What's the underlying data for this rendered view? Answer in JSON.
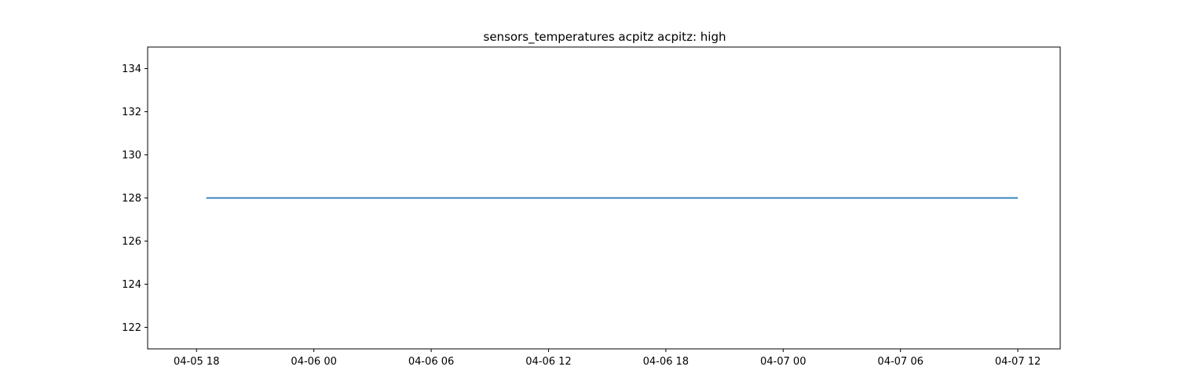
{
  "chart_data": {
    "type": "line",
    "title": "sensors_temperatures acpitz acpitz:  high",
    "xlabel": "",
    "ylabel": "",
    "x_ticks": [
      {
        "value": "2023-04-05T18:00",
        "label": "04-05 18"
      },
      {
        "value": "2023-04-06T00:00",
        "label": "04-06 00"
      },
      {
        "value": "2023-04-06T06:00",
        "label": "04-06 06"
      },
      {
        "value": "2023-04-06T12:00",
        "label": "04-06 12"
      },
      {
        "value": "2023-04-06T18:00",
        "label": "04-06 18"
      },
      {
        "value": "2023-04-07T00:00",
        "label": "04-07 00"
      },
      {
        "value": "2023-04-07T06:00",
        "label": "04-07 06"
      },
      {
        "value": "2023-04-07T12:00",
        "label": "04-07 12"
      }
    ],
    "y_ticks": [
      122,
      124,
      126,
      128,
      130,
      132,
      134
    ],
    "xlim": [
      "2023-04-05T15:30",
      "2023-04-07T14:10"
    ],
    "ylim": [
      121,
      135
    ],
    "grid": false,
    "series": [
      {
        "color": "#1f77b4",
        "x": [
          "2023-04-05T18:30",
          "2023-04-07T12:00"
        ],
        "y": [
          128,
          128
        ]
      }
    ]
  }
}
